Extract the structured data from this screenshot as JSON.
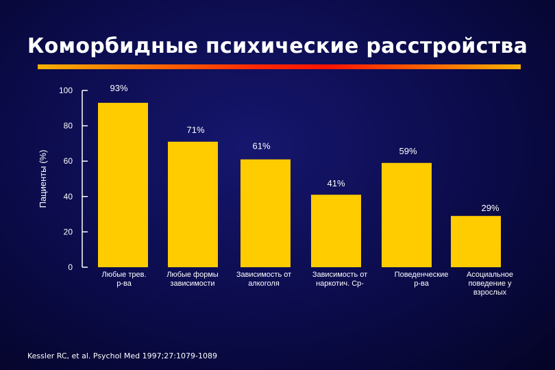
{
  "slide": {
    "title": "Коморбидные психические расстройства",
    "citation": "Kessler RC, et al. Psychol Med 1997;27:1079-1089"
  },
  "colors": {
    "background": "#0b0b4a",
    "bar": "#ffcc00",
    "text": "#ffffff"
  },
  "chart_data": {
    "type": "bar",
    "title": "",
    "ylabel": "Пациенты (%)",
    "xlabel": "",
    "ylim": [
      0,
      100
    ],
    "yticks": [
      0,
      20,
      40,
      60,
      80,
      100
    ],
    "grid": false,
    "categories": [
      [
        "Любые трев.",
        "р-ва"
      ],
      [
        "Любые формы",
        "зависимости"
      ],
      [
        "Зависимость от",
        "алкоголя"
      ],
      [
        "Зависимость от",
        "наркотич. Ср-"
      ],
      [
        "Поведенческие",
        "р-ва"
      ],
      [
        "Асоциальное",
        "поведение у",
        "взрослых"
      ]
    ],
    "values": [
      93,
      71,
      61,
      41,
      59,
      29
    ],
    "value_labels": [
      "93%",
      "71%",
      "61%",
      "41%",
      "59%",
      "29%"
    ]
  }
}
